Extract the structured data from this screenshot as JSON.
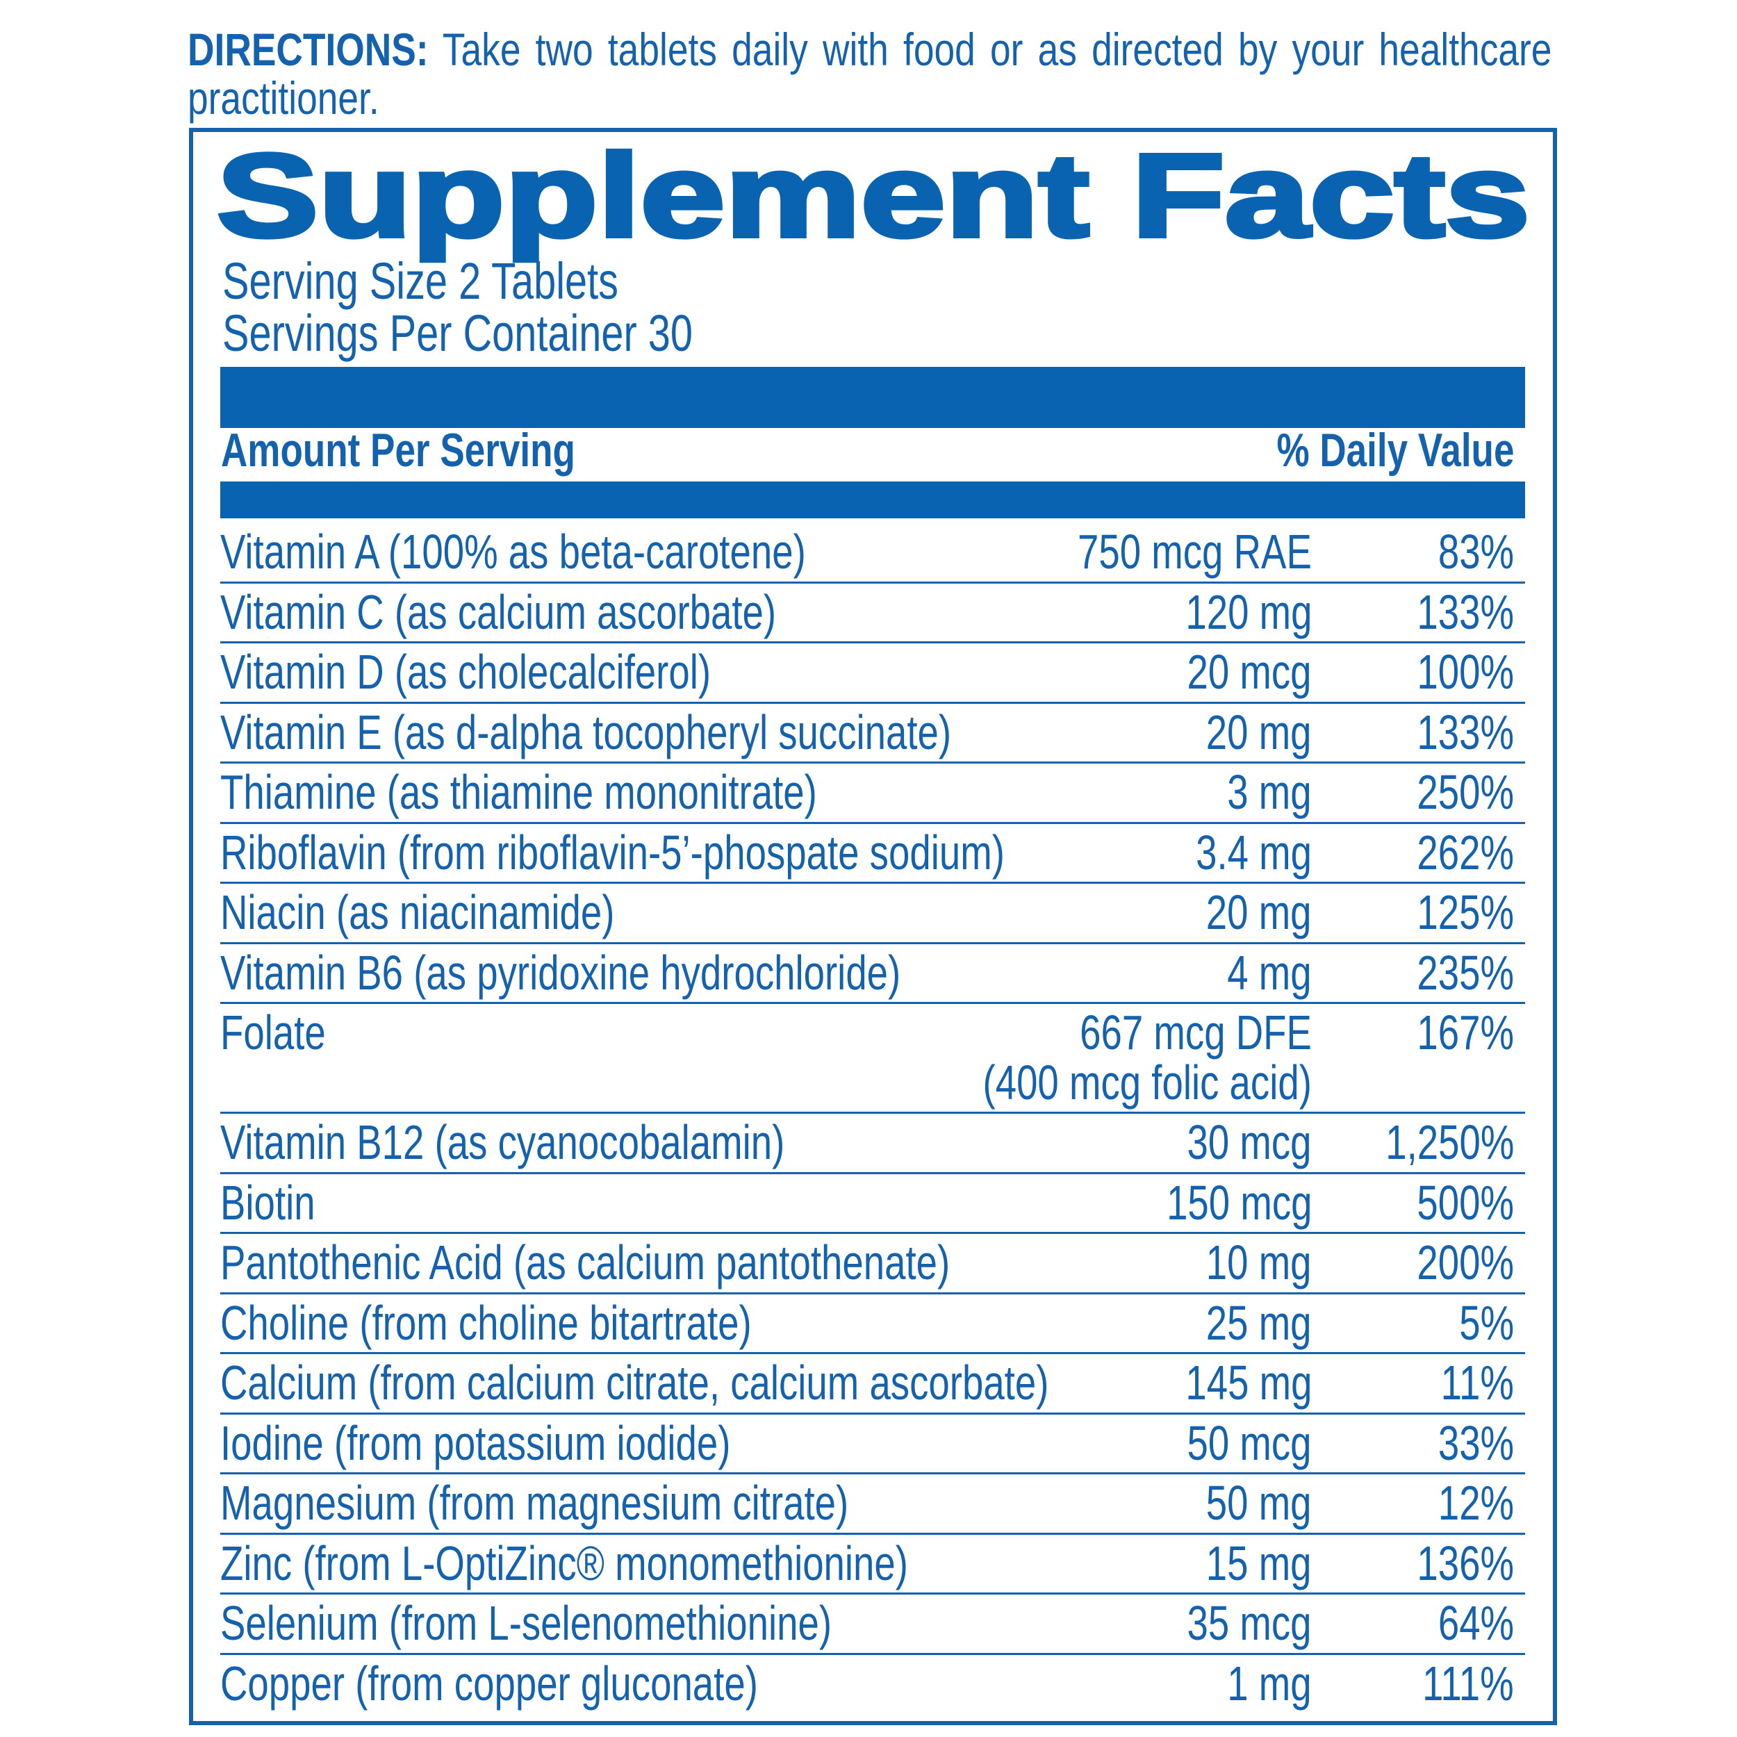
{
  "directions": {
    "label": "DIRECTIONS:",
    "text": "Take two tablets daily with food or as directed by your healthcare practitioner."
  },
  "title": "Supplement Facts",
  "serving_size": "Serving Size 2 Tablets",
  "servings_per_container": "Servings Per Container 30",
  "header": {
    "amount": "Amount Per Serving",
    "daily_value": "% Daily Value"
  },
  "rows": [
    {
      "name": "Vitamin A (100% as beta-carotene)",
      "amount": "750 mcg RAE",
      "dv": "83%"
    },
    {
      "name": "Vitamin C (as calcium ascorbate)",
      "amount": "120 mg",
      "dv": "133%"
    },
    {
      "name": "Vitamin D (as cholecalciferol)",
      "amount": "20 mcg",
      "dv": "100%"
    },
    {
      "name": "Vitamin E (as d-alpha tocopheryl succinate)",
      "amount": "20 mg",
      "dv": "133%"
    },
    {
      "name": "Thiamine (as thiamine mononitrate)",
      "amount": "3 mg",
      "dv": "250%"
    },
    {
      "name": "Riboflavin (from riboflavin-5’-phospate sodium)",
      "amount": "3.4 mg",
      "dv": "262%"
    },
    {
      "name": "Niacin (as niacinamide)",
      "amount": "20 mg",
      "dv": "125%"
    },
    {
      "name": "Vitamin B6 (as pyridoxine hydrochloride)",
      "amount": "4 mg",
      "dv": "235%"
    },
    {
      "name": "Folate",
      "amount": "667 mcg DFE",
      "amount_note": "(400 mcg folic acid)",
      "dv": "167%"
    },
    {
      "name": "Vitamin B12 (as cyanocobalamin)",
      "amount": "30 mcg",
      "dv": "1,250%"
    },
    {
      "name": "Biotin",
      "amount": "150 mcg",
      "dv": "500%"
    },
    {
      "name": "Pantothenic Acid (as calcium pantothenate)",
      "amount": "10 mg",
      "dv": "200%"
    },
    {
      "name": "Choline (from choline bitartrate)",
      "amount": "25 mg",
      "dv": "5%"
    },
    {
      "name": "Calcium (from calcium citrate, calcium ascorbate)",
      "amount": "145 mg",
      "dv": "11%"
    },
    {
      "name": "Iodine (from potassium iodide)",
      "amount": "50 mcg",
      "dv": "33%"
    },
    {
      "name": "Magnesium (from magnesium citrate)",
      "amount": "50 mg",
      "dv": "12%"
    },
    {
      "name": "Zinc (from L-OptiZinc® monomethionine)",
      "amount": "15 mg",
      "dv": "136%"
    },
    {
      "name": "Selenium (from L-selenomethionine)",
      "amount": "35 mcg",
      "dv": "64%"
    },
    {
      "name": "Copper (from copper gluconate)",
      "amount": "1 mg",
      "dv": "111%"
    }
  ]
}
